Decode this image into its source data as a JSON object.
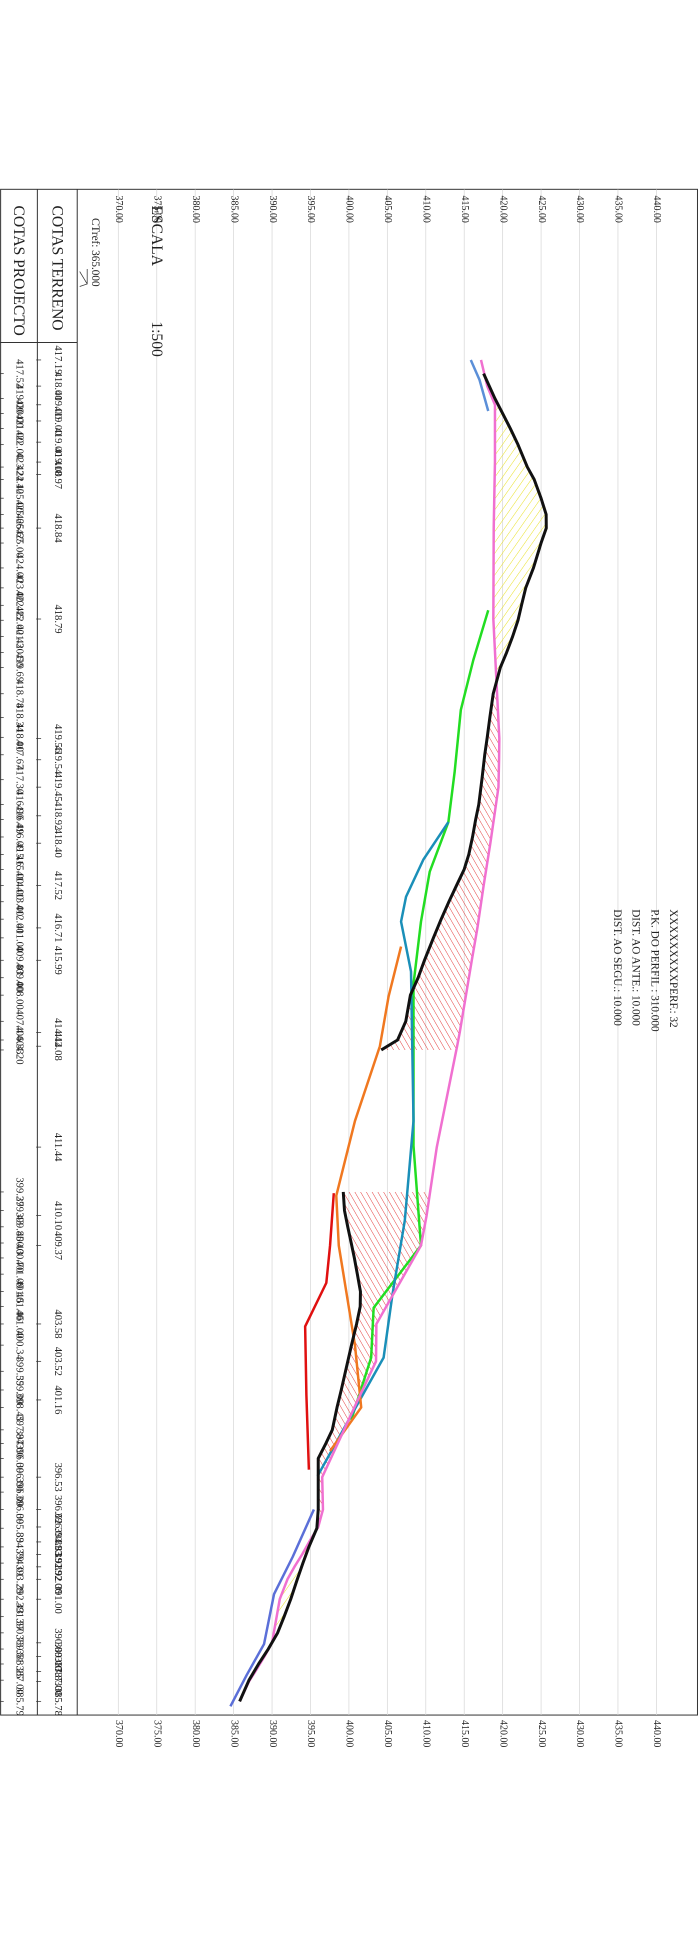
{
  "header": {
    "sheet": "XXXXXXXXXPERF.: 32",
    "pk": "P.K. DO PERFIL : 310.000",
    "ante": "DIST. AO ANTE.: 10.000",
    "segu": "DIST. AO SEGU.: 10.000"
  },
  "scale": {
    "label": "ESCALA",
    "value": "1:500"
  },
  "reference": "CTref: 365.000",
  "columns": {
    "project": "COTAS PROJECTO",
    "terrain": "COTAS TERRENO"
  },
  "axis": {
    "labels": [
      "370.00",
      "375.00",
      "380.00",
      "385.00",
      "390.00",
      "395.00",
      "400.00",
      "405.00",
      "410.00",
      "415.00",
      "420.00",
      "425.00",
      "430.00",
      "435.00",
      "440.00"
    ]
  },
  "terrain_elevations": [
    "417.19",
    "418.00",
    "419.00",
    "419.00",
    "419.00",
    "419.00",
    "418.97",
    "418.84",
    "418.79",
    "419.56",
    "419.54",
    "419.45",
    "418.92",
    "418.40",
    "417.52",
    "416.71",
    "415.99",
    "414.42",
    "414.08",
    "411.44",
    "410.10",
    "409.37",
    "403.58",
    "403.52",
    "401.16",
    "396.53",
    "396.62",
    "396.00",
    "394.83",
    "393.91",
    "392.92",
    "392.00",
    "391.00",
    "390.00",
    "389.00",
    "387.83",
    "387.00",
    "385.78"
  ],
  "project_elevations": [
    "417.52",
    "419.00",
    "420.00",
    "421.00",
    "422.00",
    "423.22",
    "424.10",
    "425.00",
    "425.66",
    "425.67",
    "425.00",
    "424.00",
    "423.00",
    "422.45",
    "422.00",
    "421.3",
    "420.50",
    "419.69",
    "418.78",
    "418.34",
    "418.00",
    "417.67",
    "417.30",
    "416.90",
    "416.49",
    "416.09",
    "415.6",
    "415.00",
    "414.00",
    "413.00",
    "412.00",
    "411.00",
    "409.83",
    "409.00",
    "408.00",
    "407.4",
    "406.33",
    "404.20",
    "399.27",
    "399.43",
    "399.85",
    "400.3",
    "400.70",
    "401.09",
    "401.5",
    "401.46",
    "401.00",
    "400.34",
    "399.55",
    "399.00",
    "398.45",
    "397.84",
    "397.00",
    "396.00",
    "396.00",
    "396.00",
    "396.00",
    "395.83",
    "394.79",
    "394.01",
    "393.29",
    "392.43",
    "391.57",
    "390.73",
    "389.51",
    "388.25",
    "387.00",
    "385.79"
  ]
}
